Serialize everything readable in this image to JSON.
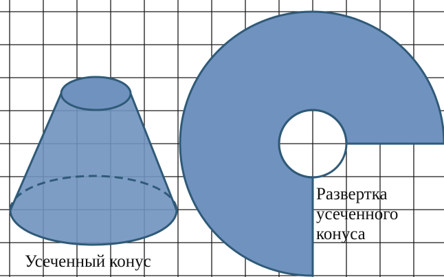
{
  "colors": {
    "grid": "#1a1a1a",
    "fill": "#7092bf",
    "stroke": "#2f5a78",
    "inner": "#ffffff",
    "text": "#111111"
  },
  "labels": {
    "truncated_cone": "Усеченный конус",
    "unfold_line1": "Развертка",
    "unfold_line2": "усеченного",
    "unfold_line3": "конуса"
  }
}
